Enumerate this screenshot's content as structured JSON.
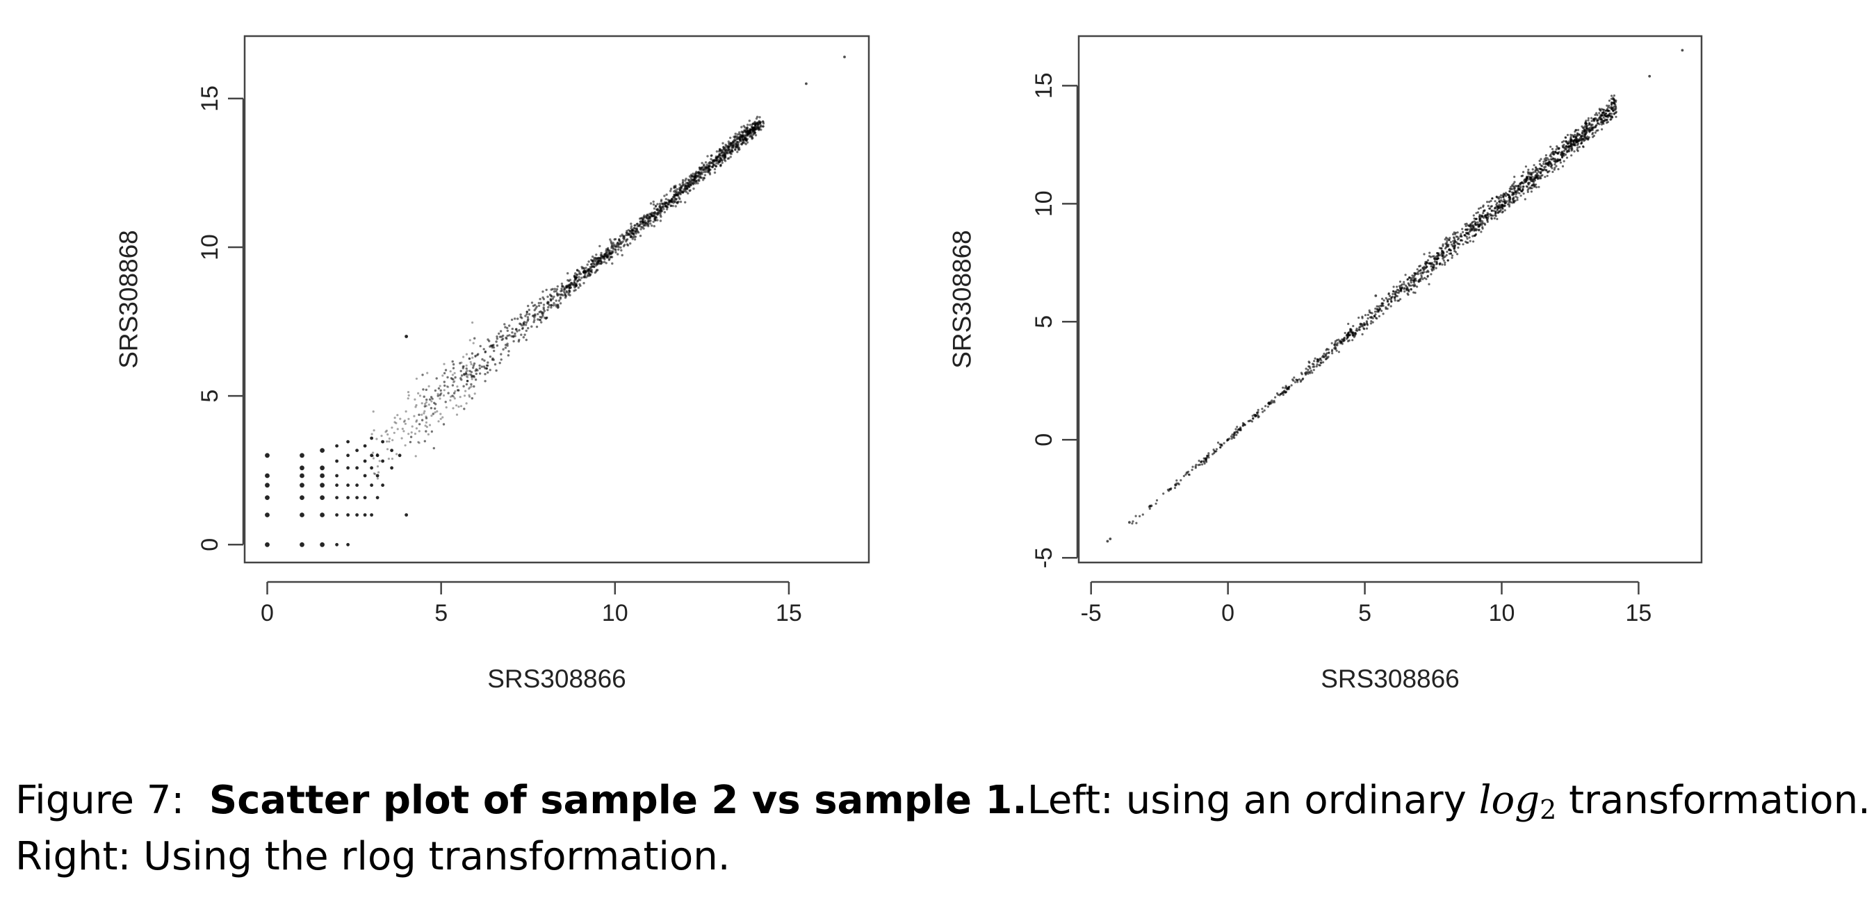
{
  "caption": {
    "figure_label": "Figure 7:",
    "title": "Scatter plot of sample 2 vs sample 1.",
    "left_text_before": "Left:  using an ordinary",
    "math_base": "log",
    "math_sub": "2",
    "left_text_after": "transformation.",
    "line2": "Right:  Using the rlog transformation."
  },
  "chart_data": [
    {
      "type": "scatter",
      "panel": "left",
      "xlabel": "SRS308866",
      "ylabel": "SRS308868",
      "xlim": [
        -0.65,
        17.3
      ],
      "ylim": [
        -0.6,
        17.1
      ],
      "xticks": [
        0,
        5,
        10,
        15
      ],
      "yticks": [
        0,
        5,
        10,
        15
      ],
      "grid": false,
      "point_color": "#000000",
      "description": "log2 counts; discrete lattice at low counts, widening spread below ~5",
      "trend": {
        "slope": 1.0,
        "intercept": 0.0
      },
      "points": [
        [
          0.0,
          0.0
        ],
        [
          0.0,
          1.0
        ],
        [
          0.0,
          1.58
        ],
        [
          0.0,
          2.0
        ],
        [
          0.0,
          2.32
        ],
        [
          0.0,
          3.0
        ],
        [
          1.0,
          0.0
        ],
        [
          1.0,
          1.0
        ],
        [
          1.0,
          1.58
        ],
        [
          1.0,
          2.0
        ],
        [
          1.0,
          2.32
        ],
        [
          1.0,
          2.58
        ],
        [
          1.0,
          3.0
        ],
        [
          1.58,
          0.0
        ],
        [
          1.58,
          1.0
        ],
        [
          1.58,
          1.58
        ],
        [
          1.58,
          2.0
        ],
        [
          1.58,
          2.32
        ],
        [
          1.58,
          2.58
        ],
        [
          1.58,
          3.17
        ],
        [
          2.0,
          0.0
        ],
        [
          2.0,
          1.0
        ],
        [
          2.0,
          1.58
        ],
        [
          2.0,
          2.0
        ],
        [
          2.0,
          2.32
        ],
        [
          2.0,
          2.81
        ],
        [
          2.0,
          3.32
        ],
        [
          2.32,
          0.0
        ],
        [
          2.32,
          1.0
        ],
        [
          2.32,
          1.58
        ],
        [
          2.32,
          2.0
        ],
        [
          2.32,
          2.58
        ],
        [
          2.32,
          3.0
        ],
        [
          2.32,
          3.46
        ],
        [
          2.58,
          1.0
        ],
        [
          2.58,
          1.58
        ],
        [
          2.58,
          2.0
        ],
        [
          2.58,
          2.58
        ],
        [
          2.58,
          3.17
        ],
        [
          2.81,
          1.0
        ],
        [
          2.81,
          1.58
        ],
        [
          2.81,
          2.32
        ],
        [
          2.81,
          2.81
        ],
        [
          2.81,
          3.32
        ],
        [
          3.0,
          1.0
        ],
        [
          3.0,
          2.0
        ],
        [
          3.0,
          2.58
        ],
        [
          3.0,
          3.0
        ],
        [
          3.0,
          3.58
        ],
        [
          3.17,
          1.58
        ],
        [
          3.17,
          2.32
        ],
        [
          3.17,
          3.0
        ],
        [
          3.32,
          2.0
        ],
        [
          3.32,
          2.81
        ],
        [
          3.32,
          3.46
        ],
        [
          3.58,
          2.58
        ],
        [
          3.58,
          3.17
        ],
        [
          3.81,
          3.0
        ],
        [
          4.0,
          1.0
        ],
        [
          4.0,
          7.0
        ],
        [
          15.5,
          15.5
        ],
        [
          16.6,
          16.4
        ]
      ]
    },
    {
      "type": "scatter",
      "panel": "right",
      "xlabel": "SRS308866",
      "ylabel": "SRS308868",
      "xlim": [
        -5.45,
        17.3
      ],
      "ylim": [
        -5.2,
        17.1
      ],
      "xticks": [
        -5,
        0,
        5,
        10,
        15
      ],
      "yticks": [
        -5,
        0,
        5,
        10,
        15
      ],
      "grid": false,
      "point_color": "#000000",
      "description": "rlog-transformed counts; tight band along the identity line",
      "trend": {
        "slope": 1.0,
        "intercept": 0.0
      },
      "points": [
        [
          -4.4,
          -4.3
        ],
        [
          -4.3,
          -4.2
        ],
        [
          -3.6,
          -3.5
        ],
        [
          -2.8,
          -2.8
        ],
        [
          -2.1,
          -2.1
        ],
        [
          -1.5,
          -1.4
        ],
        [
          -0.8,
          -0.8
        ],
        [
          0.0,
          0.0
        ],
        [
          1.0,
          1.0
        ],
        [
          2.0,
          2.0
        ],
        [
          5.4,
          6.1
        ],
        [
          15.4,
          15.4
        ],
        [
          16.6,
          16.5
        ]
      ]
    }
  ]
}
